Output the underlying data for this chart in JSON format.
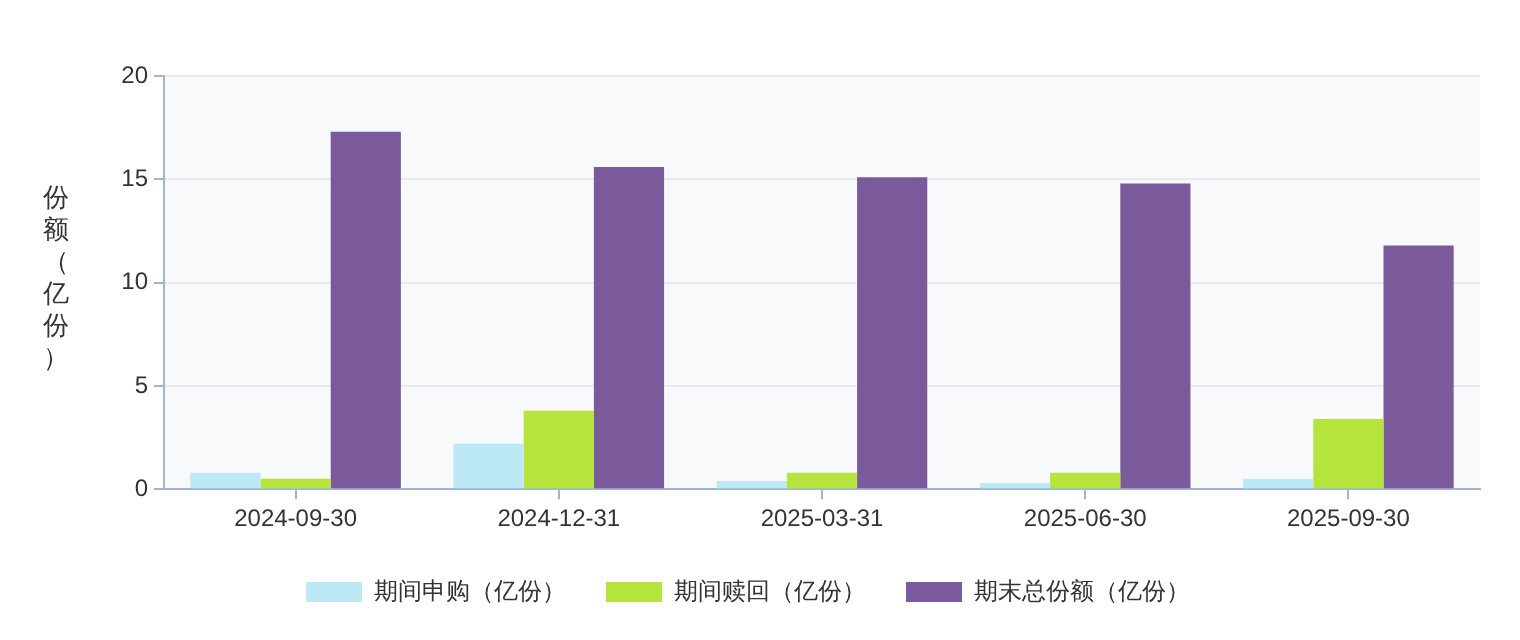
{
  "chart_data": {
    "type": "bar",
    "ylabel": "份额（亿份）",
    "categories": [
      "2024-09-30",
      "2024-12-31",
      "2025-03-31",
      "2025-06-30",
      "2025-09-30"
    ],
    "series": [
      {
        "name": "期间申购（亿份）",
        "color": "#bde8f5",
        "values": [
          0.8,
          2.2,
          0.4,
          0.3,
          0.5
        ]
      },
      {
        "name": "期间赎回（亿份）",
        "color": "#b5e53c",
        "values": [
          0.5,
          3.8,
          0.8,
          0.8,
          3.4
        ]
      },
      {
        "name": "期末总份额（亿份）",
        "color": "#7b5a9b",
        "values": [
          17.3,
          15.6,
          15.1,
          14.8,
          11.8
        ]
      }
    ],
    "ylim": [
      0,
      20
    ],
    "yticks": [
      0,
      5,
      10,
      15,
      20
    ],
    "grid": "y",
    "legend": "bottom"
  }
}
